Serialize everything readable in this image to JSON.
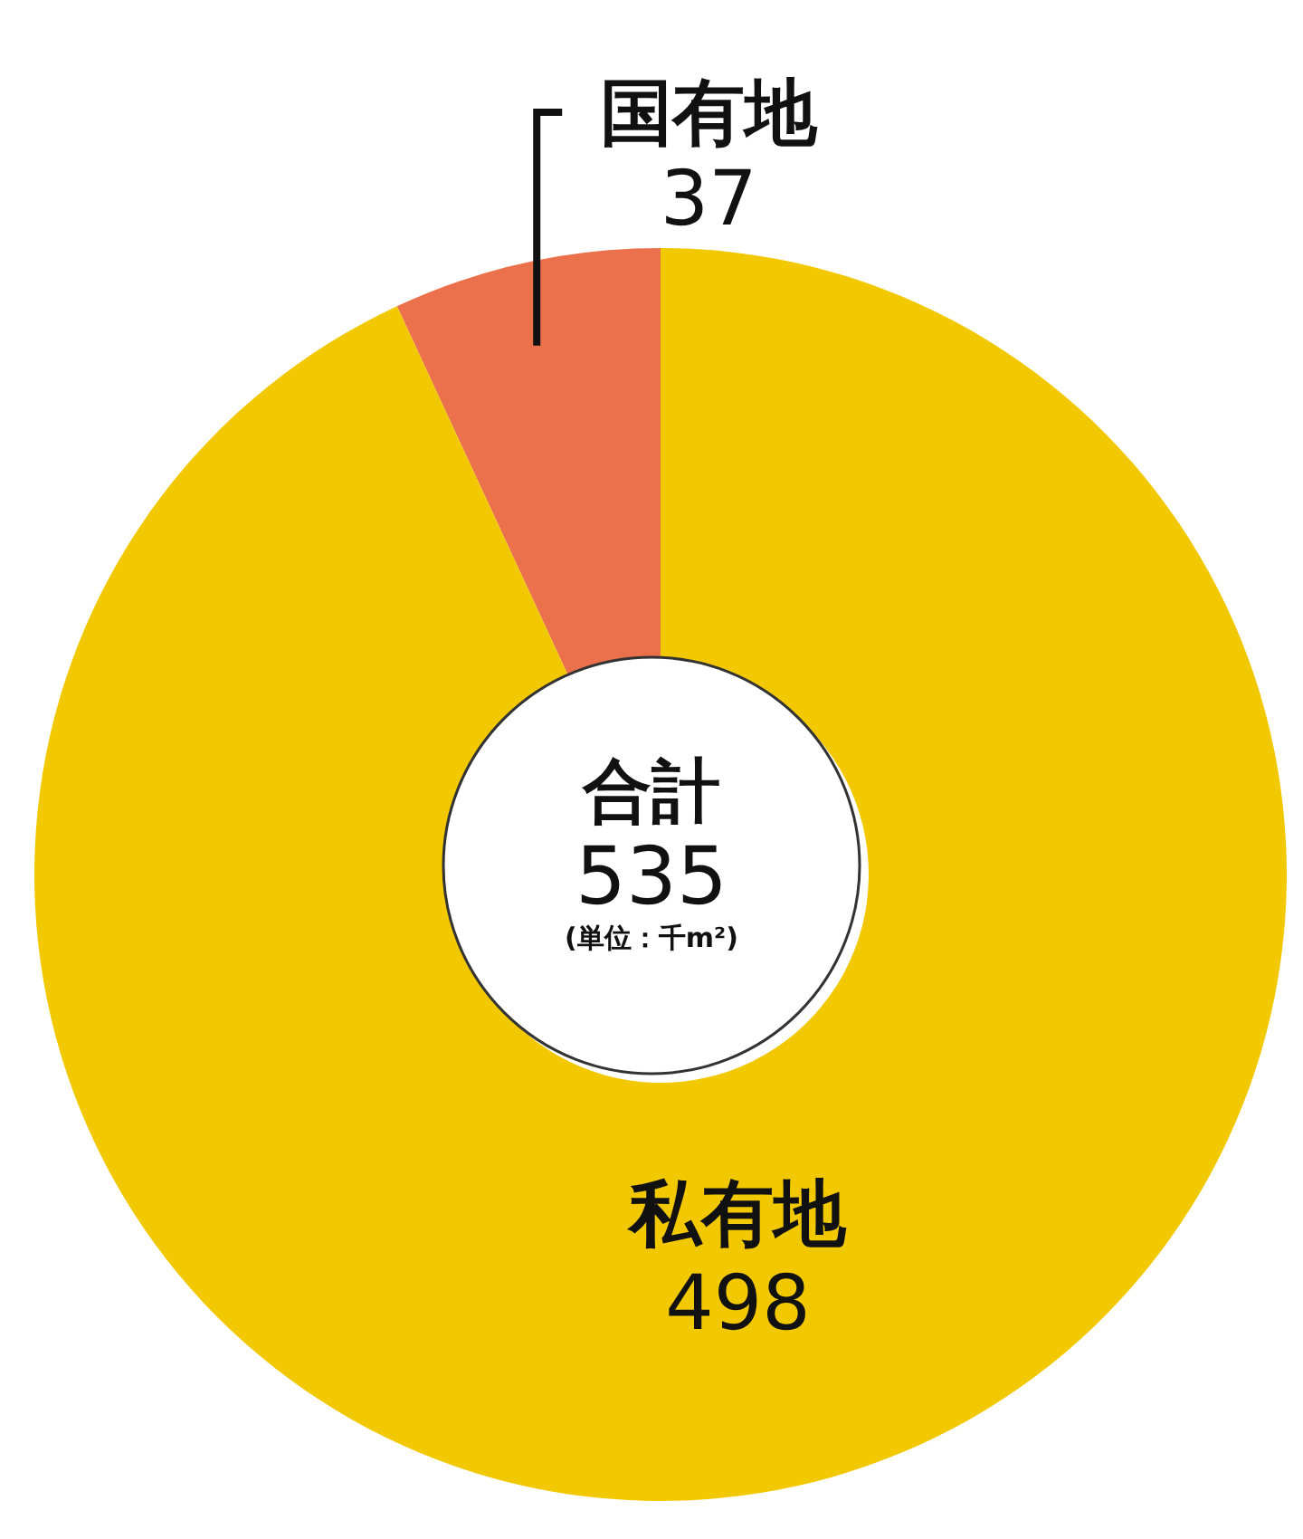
{
  "chart_data": {
    "type": "donut",
    "categories": [
      "国有地",
      "私有地"
    ],
    "values": [
      37,
      498
    ],
    "colors": [
      "#eb714c",
      "#f2c900"
    ],
    "data_labels": true,
    "annotations": [
      "合計",
      "535",
      "(単位：千m²)"
    ]
  }
}
